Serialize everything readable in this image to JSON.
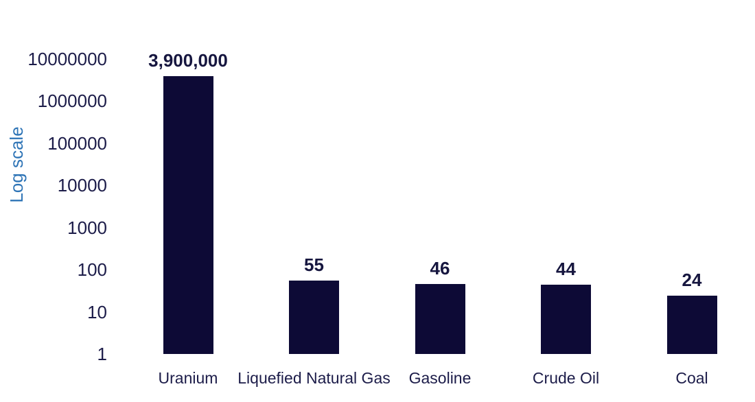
{
  "chart_data": {
    "type": "bar",
    "yscale": "log",
    "ylabel": "Log scale",
    "ylim": [
      1,
      10000000
    ],
    "grid": false,
    "tick_labels": [
      "10000000",
      "1000000",
      "100000",
      "10000",
      "1000",
      "100",
      "10",
      "1"
    ],
    "categories": [
      "Uranium",
      "Liquefied Natural Gas",
      "Gasoline",
      "Crude Oil",
      "Coal"
    ],
    "values": [
      3900000,
      55,
      46,
      44,
      24
    ],
    "value_labels": [
      "3,900,000",
      "55",
      "46",
      "44",
      "24"
    ],
    "colors": {
      "bar": "#0d0a36",
      "tick_text": "#1c1c49",
      "category_text": "#1c1c49",
      "value_text": "#16163f",
      "axis_label_text": "#2e74b6",
      "background": "#ffffff"
    }
  }
}
